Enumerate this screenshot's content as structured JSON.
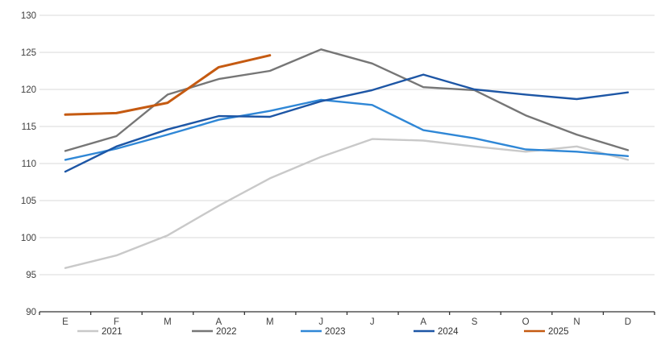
{
  "chart_data": {
    "type": "line",
    "title": "",
    "xlabel": "",
    "ylabel": "",
    "x_categories": [
      "E",
      "F",
      "M",
      "A",
      "M",
      "J",
      "J",
      "A",
      "S",
      "O",
      "N",
      "D"
    ],
    "ylim": [
      90,
      130
    ],
    "y_ticks": [
      90,
      95,
      100,
      105,
      110,
      115,
      120,
      125,
      130
    ],
    "grid": "horizontal",
    "legend_position": "bottom",
    "series": [
      {
        "name": "2021",
        "color": "#c9c9c9",
        "values": [
          95.9,
          97.6,
          100.3,
          104.3,
          108.0,
          110.9,
          113.3,
          113.1,
          112.3,
          111.6,
          112.3,
          110.5
        ]
      },
      {
        "name": "2022",
        "color": "#767676",
        "values": [
          111.7,
          113.7,
          119.3,
          121.4,
          122.5,
          125.4,
          123.5,
          120.3,
          119.9,
          116.5,
          113.9,
          111.8
        ]
      },
      {
        "name": "2023",
        "color": "#2f87d6",
        "values": [
          110.5,
          112.0,
          113.9,
          115.9,
          117.1,
          118.6,
          117.9,
          114.5,
          113.4,
          111.9,
          111.6,
          111.0
        ]
      },
      {
        "name": "2024",
        "color": "#1d56a5",
        "values": [
          108.9,
          112.3,
          114.6,
          116.4,
          116.3,
          118.4,
          119.9,
          122.0,
          120.0,
          119.3,
          118.7,
          119.6
        ]
      },
      {
        "name": "2025",
        "color": "#c55a11",
        "values": [
          116.6,
          116.8,
          118.2,
          123.0,
          124.6
        ]
      }
    ]
  },
  "style": {
    "gridline_color": "#d9d9d9",
    "axis_color": "#333333",
    "label_color": "#404040",
    "legend_text_color": "#333333"
  }
}
